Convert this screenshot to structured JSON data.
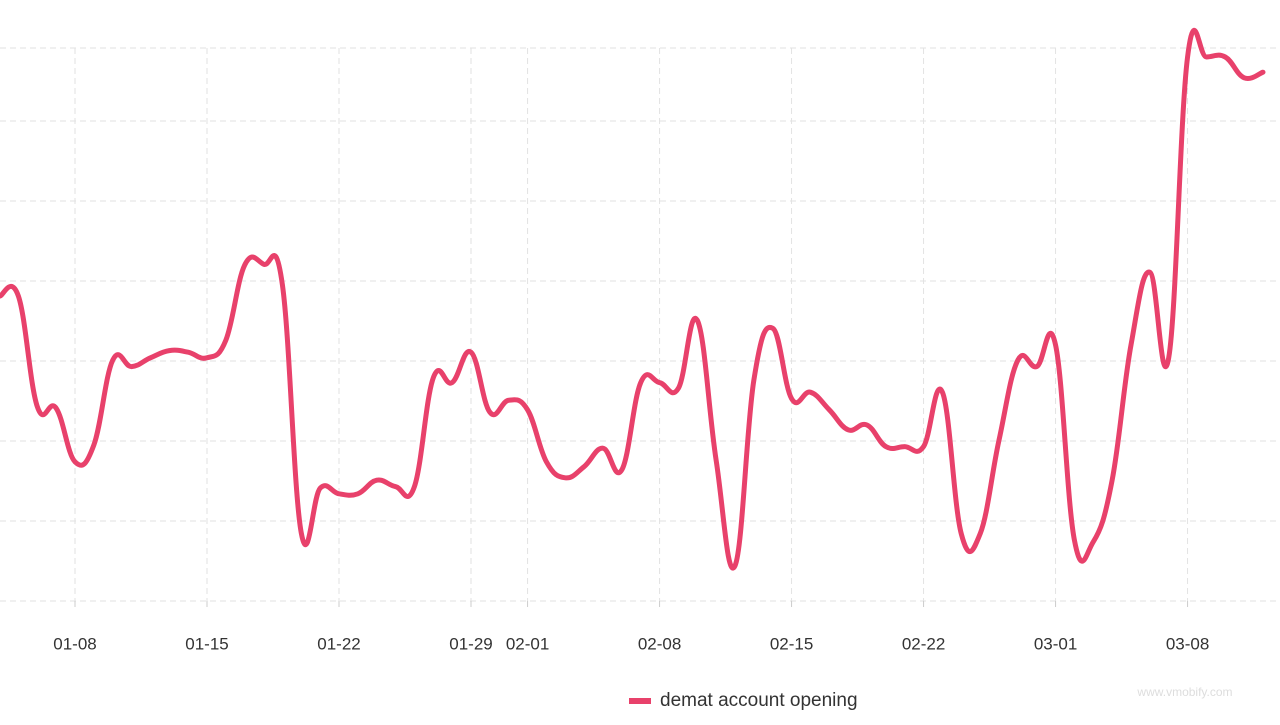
{
  "chart_data": {
    "type": "line",
    "categories": [
      null,
      null,
      null,
      null,
      "01-08",
      null,
      null,
      null,
      null,
      null,
      null,
      "01-15",
      null,
      null,
      null,
      null,
      null,
      null,
      "01-22",
      null,
      null,
      null,
      null,
      null,
      null,
      "01-29",
      null,
      null,
      "02-01",
      null,
      null,
      null,
      null,
      null,
      null,
      "02-08",
      null,
      null,
      null,
      null,
      null,
      null,
      "02-15",
      null,
      null,
      null,
      null,
      null,
      null,
      "02-22",
      null,
      null,
      null,
      null,
      null,
      null,
      "03-01",
      null,
      null,
      null,
      null,
      null,
      null,
      "03-08",
      null,
      null,
      null,
      null
    ],
    "series": [
      {
        "name": "demat account opening",
        "color": "#e8416b",
        "values": [
          3.81,
          3.81,
          2.43,
          2.41,
          1.74,
          1.95,
          3.01,
          2.93,
          3.04,
          3.13,
          3.11,
          3.04,
          3.26,
          4.2,
          4.21,
          3.95,
          0.85,
          1.41,
          1.34,
          1.34,
          1.51,
          1.43,
          1.43,
          2.79,
          2.73,
          3.11,
          2.36,
          2.51,
          2.39,
          1.74,
          1.54,
          1.68,
          1.91,
          1.64,
          2.73,
          2.73,
          2.66,
          3.51,
          1.76,
          0.44,
          2.76,
          3.41,
          2.53,
          2.61,
          2.39,
          2.14,
          2.2,
          1.93,
          1.93,
          1.93,
          2.61,
          0.84,
          0.84,
          2.01,
          3.01,
          2.93,
          3.2,
          0.76,
          0.74,
          1.51,
          3.2,
          4.11,
          3.04,
          6.8,
          6.8,
          6.8,
          6.54,
          6.61
        ]
      }
    ],
    "ylim": [
      0,
      7
    ],
    "grid": true,
    "legend": "bottom"
  },
  "watermark": "www.vmobify.com"
}
